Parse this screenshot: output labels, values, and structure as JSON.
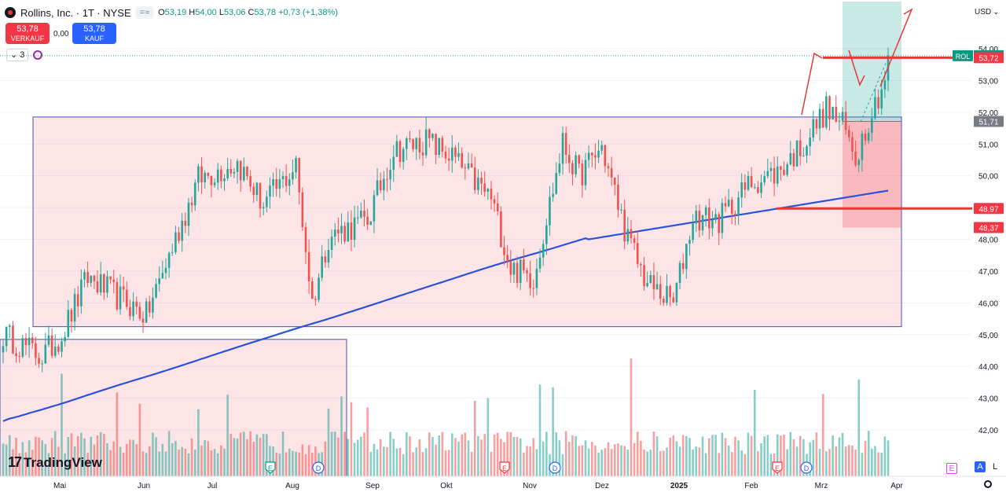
{
  "header": {
    "symbol_title": "Rollins, Inc. · 1T · NYSE",
    "ohlc_o_label": "O",
    "ohlc_o": "53,19",
    "ohlc_h_label": "H",
    "ohlc_h": "54,00",
    "ohlc_l_label": "L",
    "ohlc_l": "53,06",
    "ohlc_c_label": "C",
    "ohlc_c": "53,78",
    "change": "+0,73 (+1,38%)",
    "compare_chip": "=≈"
  },
  "trade": {
    "sell_price": "53,78",
    "sell_label": "VERKAUF",
    "spread": "0,00",
    "buy_price": "53,78",
    "buy_label": "KAUF"
  },
  "indicators": {
    "count": "3"
  },
  "currency": "USD",
  "branding": {
    "name": "TradingView",
    "mark": "17"
  },
  "corner": {
    "a": "A",
    "l": "L",
    "e": "E"
  },
  "chart_data": {
    "type": "candlestick",
    "x_tick_labels": [
      "Mai",
      "Jun",
      "Jul",
      "Aug",
      "Sep",
      "Okt",
      "Nov",
      "Dez",
      "2025",
      "Feb",
      "Mrz",
      "Apr"
    ],
    "y_tick_labels": [
      "54,00",
      "53,00",
      "52,00",
      "51,00",
      "50,00",
      "49,00",
      "48,00",
      "47,00",
      "46,00",
      "45,00",
      "44,00",
      "43,00",
      "42,00"
    ],
    "ylim": [
      41.3,
      54.3
    ],
    "price_labels": [
      {
        "text": "53,78",
        "tag": "ROL",
        "value": 53.78,
        "color": "#089981"
      },
      {
        "text": "53,72",
        "value": 53.72,
        "color": "#f23645"
      },
      {
        "text": "51,71",
        "value": 51.71,
        "color": "#787b86"
      },
      {
        "text": "48,97",
        "value": 48.97,
        "color": "#f23645"
      },
      {
        "text": "48,37",
        "value": 48.37,
        "color": "#f23645"
      }
    ],
    "events": [
      {
        "label": "E",
        "date_index": 2,
        "color": "#089981"
      },
      {
        "label": "D",
        "date_index": 1,
        "color": "#2962ff"
      },
      {
        "label": "D",
        "date_index": 3,
        "color": "#2962ff"
      },
      {
        "label": "E",
        "date_index": 0,
        "color": "#f23645"
      },
      {
        "label": "D",
        "date_index": 4,
        "color": "#2962ff"
      },
      {
        "label": "E",
        "date_index": 5,
        "color": "#f23645"
      },
      {
        "label": "D",
        "date_index": 6,
        "color": "#2962ff"
      }
    ],
    "colors": {
      "up": "#26a69a",
      "down": "#ef5350",
      "ma": "#2a52d8",
      "zone": "#f23645",
      "target": "#26a69a",
      "drawing": "#e53935"
    },
    "range_boxes": [
      {
        "name": "upper-range",
        "y_low": 45.25,
        "y_high": 51.85
      },
      {
        "name": "lower-range",
        "y_low": 41.3,
        "y_high": 44.85
      }
    ],
    "position": {
      "entry": 51.71,
      "target": 54.3,
      "stop": 48.37
    },
    "levels": [
      53.72,
      48.97
    ]
  }
}
